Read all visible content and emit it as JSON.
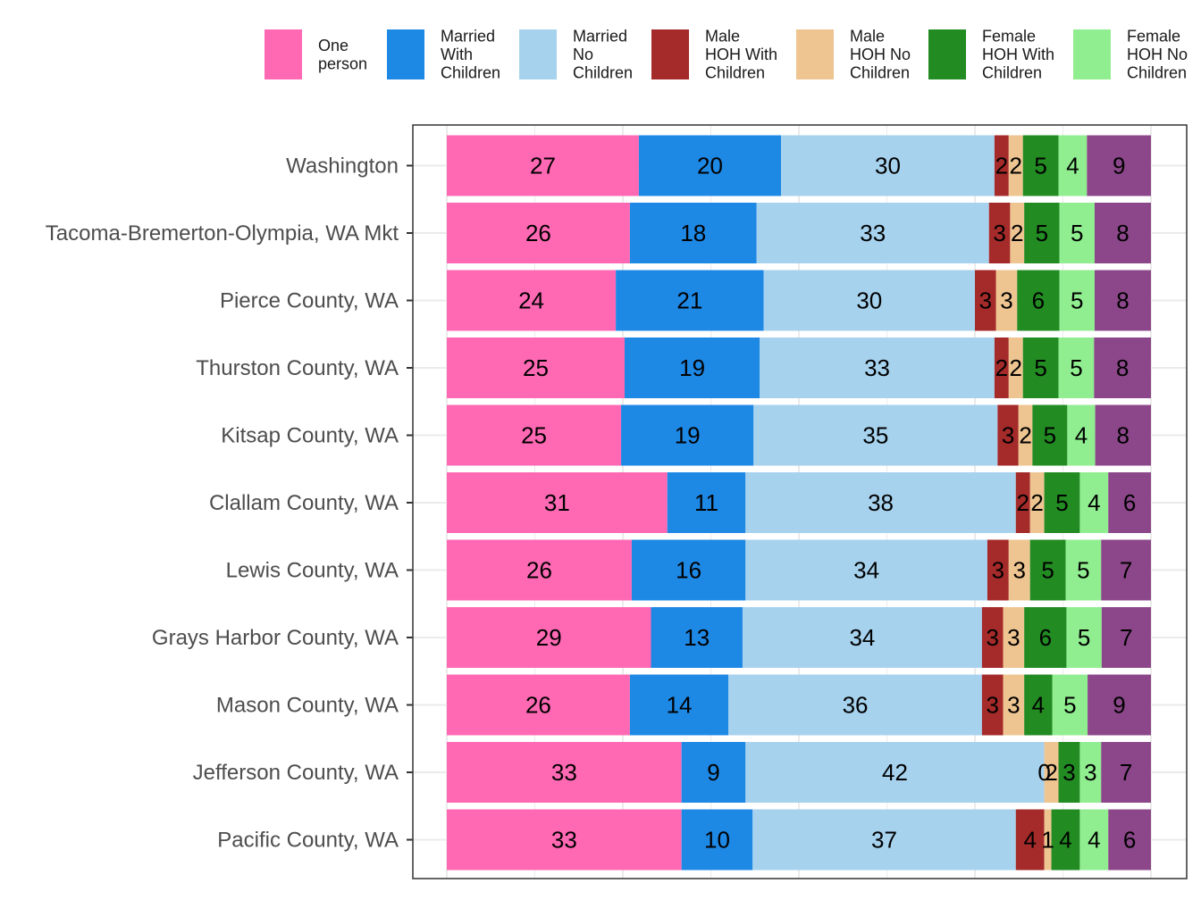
{
  "chart_data": {
    "type": "bar",
    "orientation": "horizontal",
    "stacked": true,
    "title": "",
    "xlabel": "",
    "ylabel": "",
    "grid": true,
    "legend_position": "top",
    "categories": [
      "Washington",
      "Tacoma-Bremerton-Olympia, WA Mkt",
      "Pierce County, WA",
      "Thurston County, WA",
      "Kitsap County, WA",
      "Clallam County, WA",
      "Lewis County, WA",
      "Grays Harbor County, WA",
      "Mason County, WA",
      "Jefferson County, WA",
      "Pacific County, WA"
    ],
    "series": [
      {
        "name": "One person",
        "legend_lines": [
          "One",
          "person"
        ],
        "color": "#FF69B4",
        "values": [
          27,
          26,
          24,
          25,
          25,
          31,
          26,
          29,
          26,
          33,
          33
        ]
      },
      {
        "name": "Married With Children",
        "legend_lines": [
          "Married",
          "With",
          "Children"
        ],
        "color": "#1E88E5",
        "values": [
          20,
          18,
          21,
          19,
          19,
          11,
          16,
          13,
          14,
          9,
          10
        ]
      },
      {
        "name": "Married No Children",
        "legend_lines": [
          "Married",
          "No",
          "Children"
        ],
        "color": "#A6D2EE",
        "values": [
          30,
          33,
          30,
          33,
          35,
          38,
          34,
          34,
          36,
          42,
          37
        ]
      },
      {
        "name": "Male HOH With Children",
        "legend_lines": [
          "Male",
          "HOH With",
          "Children"
        ],
        "color": "#A52A2A",
        "values": [
          2,
          3,
          3,
          2,
          3,
          2,
          3,
          3,
          3,
          0,
          4
        ]
      },
      {
        "name": "Male HOH No Children",
        "legend_lines": [
          "Male",
          "HOH No",
          "Children"
        ],
        "color": "#EEC591",
        "values": [
          2,
          2,
          3,
          2,
          2,
          2,
          3,
          3,
          3,
          2,
          1
        ]
      },
      {
        "name": "Female HOH With Children",
        "legend_lines": [
          "Female",
          "HOH With",
          "Children"
        ],
        "color": "#228B22",
        "values": [
          5,
          5,
          6,
          5,
          5,
          5,
          5,
          6,
          4,
          3,
          4
        ]
      },
      {
        "name": "Female HOH No Children",
        "legend_lines": [
          "Female",
          "HOH No",
          "Children"
        ],
        "color": "#90EE90",
        "values": [
          4,
          5,
          5,
          5,
          4,
          4,
          5,
          5,
          5,
          3,
          4
        ]
      },
      {
        "name": "",
        "legend_lines": [],
        "color": "#8B4789",
        "values": [
          9,
          8,
          8,
          8,
          8,
          6,
          7,
          7,
          9,
          7,
          6
        ]
      }
    ],
    "xlim": [
      0,
      100
    ]
  }
}
